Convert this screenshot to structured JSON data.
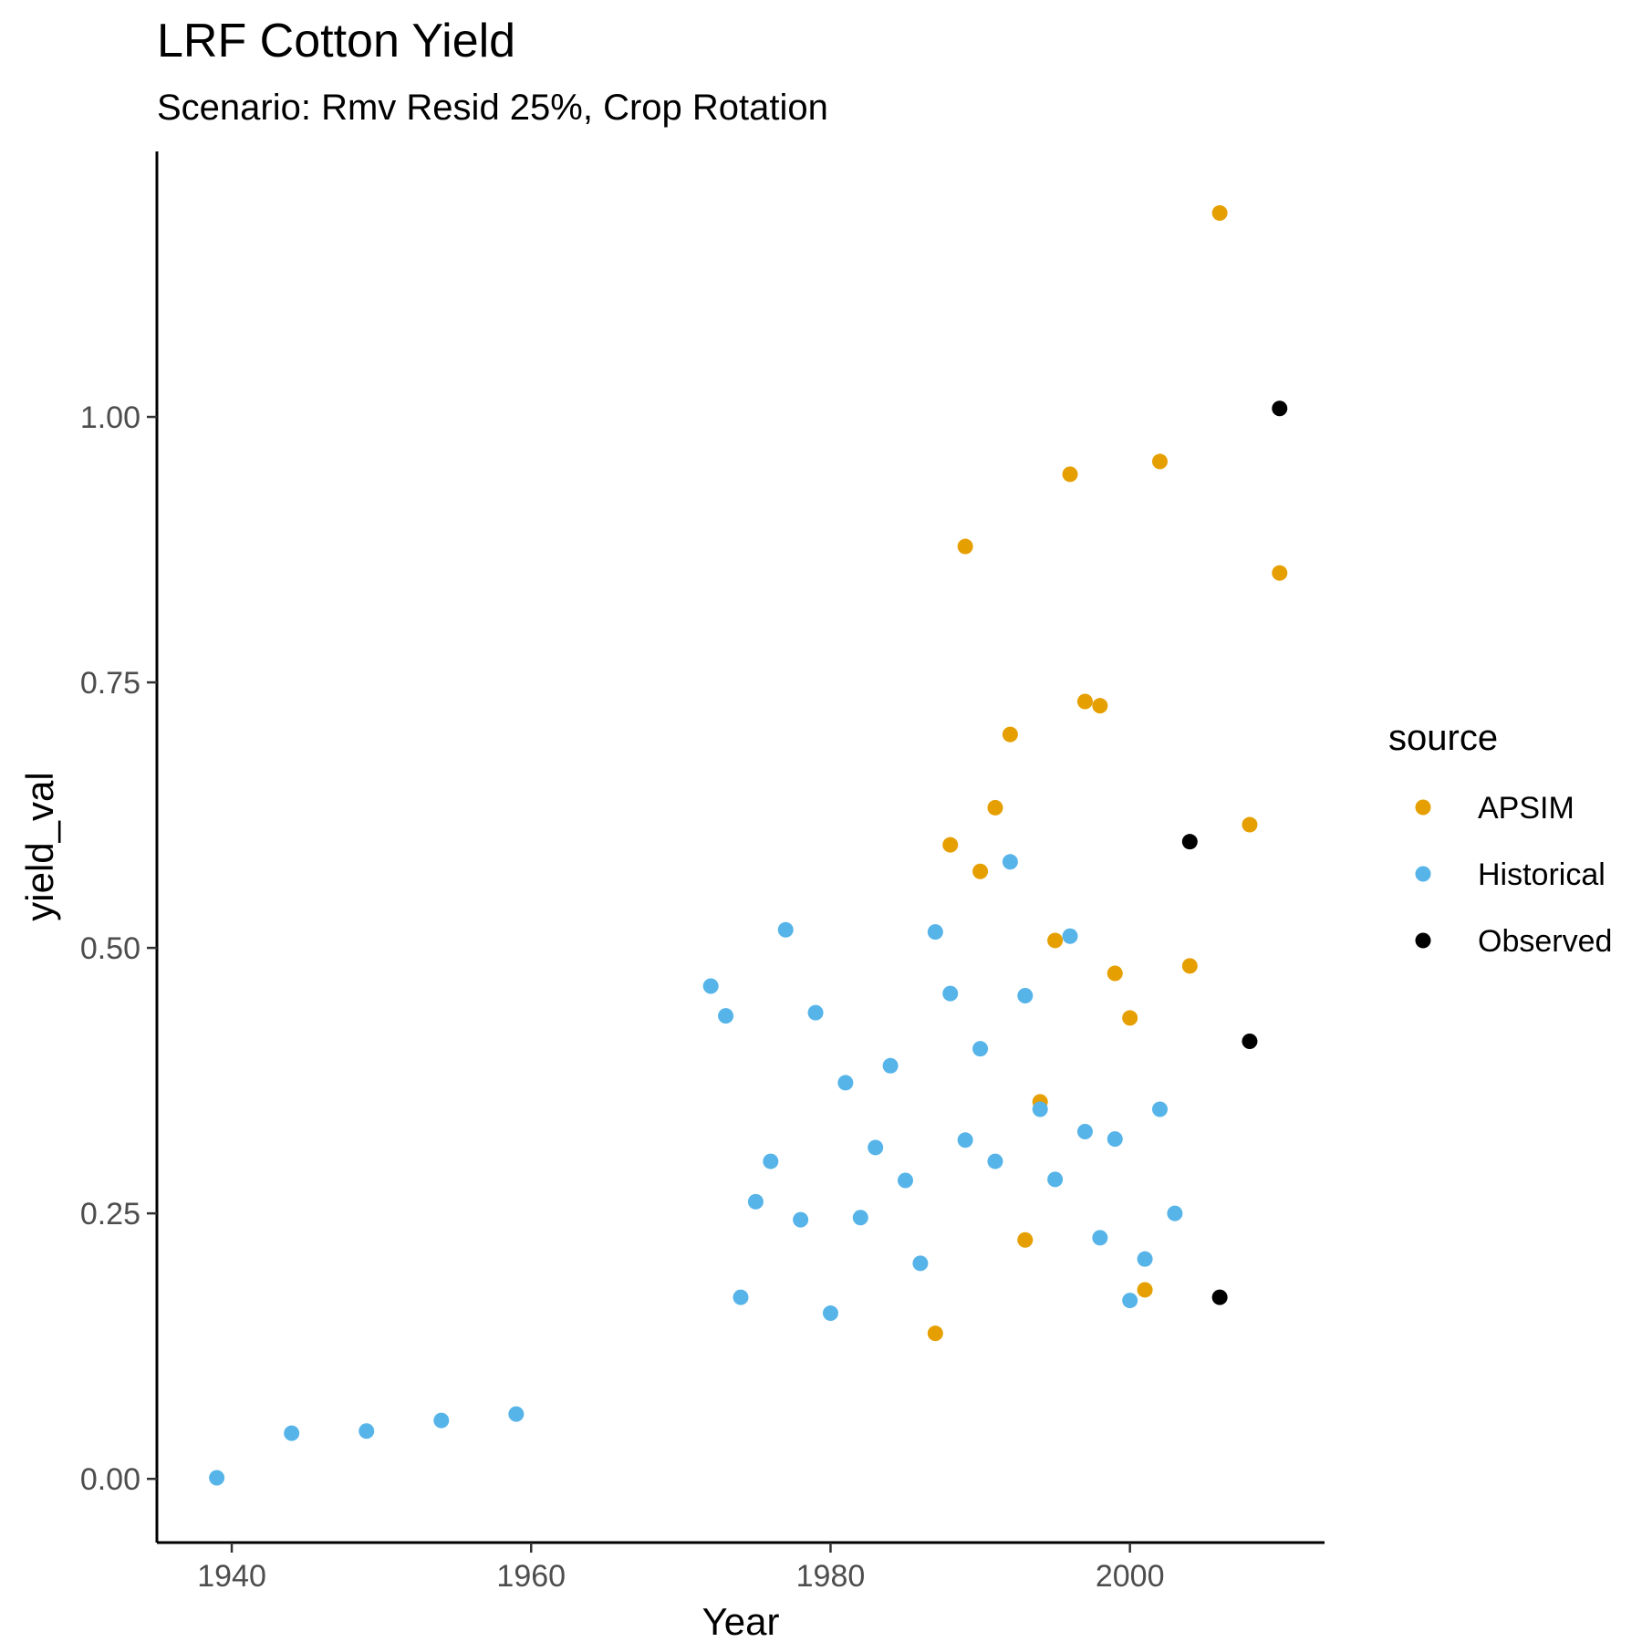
{
  "chart_data": {
    "type": "scatter",
    "title": "LRF Cotton Yield",
    "subtitle": "Scenario: Rmv Resid 25%, Crop Rotation",
    "xlabel": "Year",
    "ylabel": "yield_val",
    "xlim": [
      1935,
      2013
    ],
    "ylim": [
      -0.06,
      1.25
    ],
    "x_ticks": [
      1940,
      1960,
      1980,
      2000
    ],
    "x_tick_labels": [
      "1940",
      "1960",
      "1980",
      "2000"
    ],
    "y_ticks": [
      0.0,
      0.25,
      0.5,
      0.75,
      1.0
    ],
    "y_tick_labels": [
      "0.00",
      "0.25",
      "0.50",
      "0.75",
      "1.00"
    ],
    "grid": false,
    "legend": {
      "title": "source",
      "position": "right"
    },
    "series": [
      {
        "name": "APSIM",
        "color": "#E69F00",
        "x": [
          1987,
          1988,
          1989,
          1990,
          1991,
          1992,
          1993,
          1994,
          1995,
          1996,
          1997,
          1998,
          1999,
          2000,
          2001,
          2002,
          2004,
          2006,
          2008,
          2010
        ],
        "y": [
          0.137,
          0.597,
          0.878,
          0.572,
          0.632,
          0.701,
          0.225,
          0.355,
          0.507,
          0.946,
          0.732,
          0.728,
          0.476,
          0.434,
          0.178,
          0.958,
          0.483,
          1.192,
          0.616,
          0.853
        ]
      },
      {
        "name": "Historical",
        "color": "#56B4E9",
        "x": [
          1939,
          1944,
          1949,
          1954,
          1959,
          1972,
          1973,
          1974,
          1975,
          1976,
          1977,
          1978,
          1979,
          1980,
          1981,
          1982,
          1983,
          1984,
          1985,
          1986,
          1987,
          1988,
          1989,
          1990,
          1991,
          1992,
          1993,
          1994,
          1995,
          1996,
          1997,
          1998,
          1999,
          2000,
          2001,
          2002,
          2003
        ],
        "y": [
          0.001,
          0.043,
          0.045,
          0.055,
          0.061,
          0.464,
          0.436,
          0.171,
          0.261,
          0.299,
          0.517,
          0.244,
          0.439,
          0.156,
          0.373,
          0.246,
          0.312,
          0.389,
          0.281,
          0.203,
          0.515,
          0.457,
          0.319,
          0.405,
          0.299,
          0.581,
          0.455,
          0.348,
          0.282,
          0.511,
          0.327,
          0.227,
          0.32,
          0.168,
          0.207,
          0.348,
          0.25
        ]
      },
      {
        "name": "Observed",
        "color": "#000000",
        "x": [
          2004,
          2006,
          2008,
          2010
        ],
        "y": [
          0.6,
          0.171,
          0.412,
          1.008
        ]
      }
    ]
  }
}
